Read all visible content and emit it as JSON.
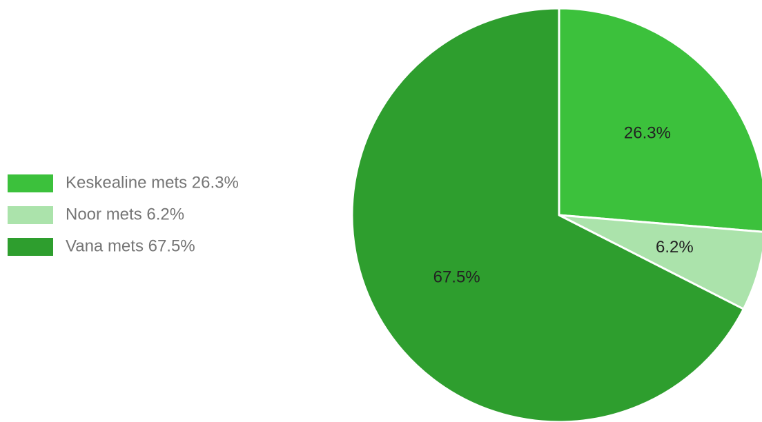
{
  "chart_data": {
    "type": "pie",
    "title": "",
    "slices": [
      {
        "label": "Keskealine mets 26.3%",
        "value": 26.3,
        "display": "26.3%",
        "color": "#3cc13c"
      },
      {
        "label": "Noor mets 6.2%",
        "value": 6.2,
        "display": "6.2%",
        "color": "#abe3ab"
      },
      {
        "label": "Vana mets 67.5%",
        "value": 67.5,
        "display": "67.5%",
        "color": "#2e9e2e"
      }
    ],
    "start_angle_deg": 0,
    "direction": "clockwise",
    "legend_position": "left",
    "border_color": "#ffffff"
  }
}
